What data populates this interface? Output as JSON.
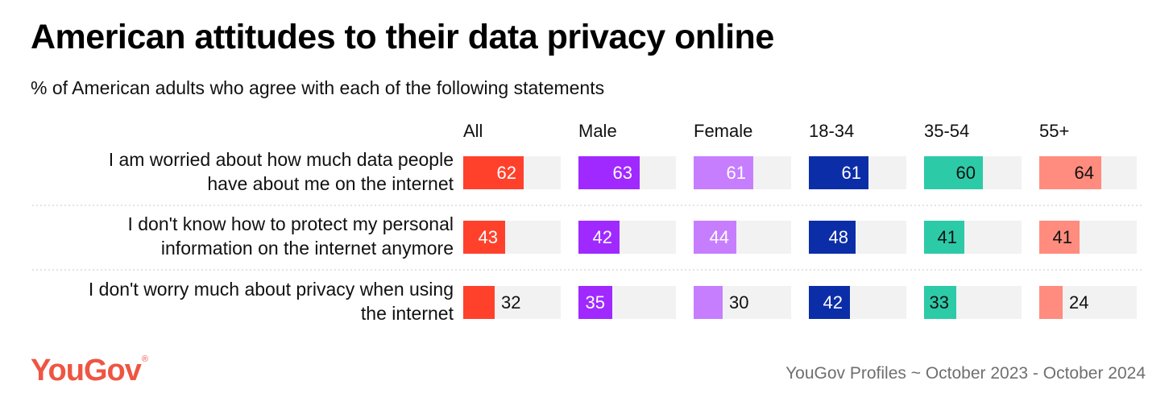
{
  "title": "American attitudes to their data privacy online",
  "subtitle": "% of American adults who agree with each of the following statements",
  "source": "YouGov Profiles ~ October 2023 - October 2024",
  "logo": {
    "text": "YouGov",
    "mark": "®",
    "color": "#ee5543"
  },
  "chart_data": {
    "type": "bar",
    "orientation": "horizontal-small-multiples",
    "title": "American attitudes to their data privacy online",
    "subtitle": "% of American adults who agree with each of the following statements",
    "unit": "%",
    "xlim": [
      0,
      100
    ],
    "categories": [
      [
        "I am worried about how much data people",
        "have about me on the internet"
      ],
      [
        "I don't know how to protect my personal",
        "information on the internet anymore"
      ],
      [
        "I don't worry much about privacy when using",
        "the internet"
      ]
    ],
    "series": [
      {
        "name": "All",
        "color": "#ff412c",
        "label_color": "#ffffff",
        "values": [
          62,
          43,
          32
        ]
      },
      {
        "name": "Male",
        "color": "#9f29ff",
        "label_color": "#ffffff",
        "values": [
          63,
          42,
          35
        ]
      },
      {
        "name": "Female",
        "color": "#c67eff",
        "label_color": "#ffffff",
        "values": [
          61,
          44,
          30
        ]
      },
      {
        "name": "18-34",
        "color": "#0b2ea8",
        "label_color": "#ffffff",
        "values": [
          61,
          48,
          42
        ]
      },
      {
        "name": "35-54",
        "color": "#2dcaa8",
        "label_color": "#111111",
        "values": [
          60,
          41,
          33
        ]
      },
      {
        "name": "55+",
        "color": "#ff8c7e",
        "label_color": "#111111",
        "values": [
          64,
          41,
          24
        ]
      }
    ],
    "track_color": "#f2f2f2"
  }
}
